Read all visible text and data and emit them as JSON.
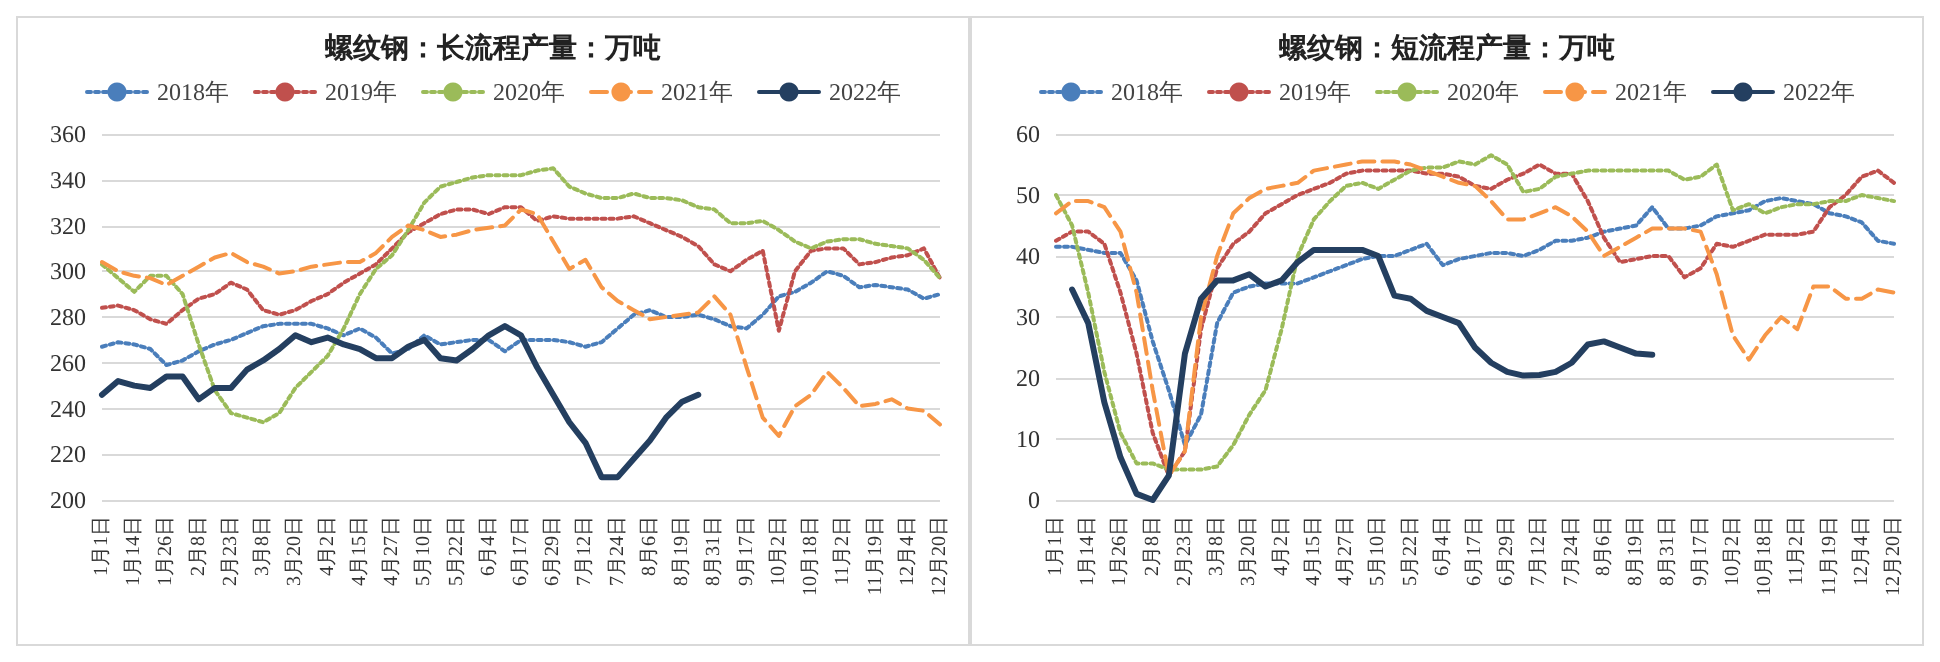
{
  "chart_data": [
    {
      "type": "line",
      "title": "螺纹钢：长流程产量：万吨",
      "categories": [
        "1月1日",
        null,
        "1月14日",
        null,
        "1月26日",
        null,
        "2月8日",
        null,
        "2月23日",
        null,
        "3月8日",
        null,
        "3月20日",
        null,
        "4月2日",
        null,
        "4月15日",
        null,
        "4月27日",
        null,
        "5月10日",
        null,
        "5月22日",
        null,
        "6月4日",
        null,
        "6月17日",
        null,
        "6月29日",
        null,
        "7月12日",
        null,
        "7月24日",
        null,
        "8月6日",
        null,
        "8月19日",
        null,
        "8月31日",
        null,
        "9月17日",
        null,
        "10月2日",
        null,
        "10月18日",
        null,
        "11月2日",
        null,
        "11月19日",
        null,
        "12月4日",
        null,
        "12月20日"
      ],
      "ylim": [
        200,
        360
      ],
      "yticks": [
        200,
        220,
        240,
        260,
        280,
        300,
        320,
        340,
        360
      ],
      "grid": "y",
      "legend": "top",
      "marker": "none",
      "series": [
        {
          "name": "2018年",
          "color": "#4a7ebb",
          "line_style": "dotted",
          "values": [
            267,
            269,
            268,
            266,
            259,
            261,
            265,
            268,
            270,
            273,
            276,
            277,
            277,
            277,
            275,
            272,
            275,
            271,
            264,
            266,
            272,
            268,
            269,
            270,
            270,
            265,
            270,
            270,
            270,
            269,
            267,
            269,
            275,
            281,
            283,
            280,
            280,
            281,
            279,
            276,
            275,
            281,
            289,
            291,
            295,
            300,
            298,
            293,
            294,
            293,
            292,
            288,
            290
          ]
        },
        {
          "name": "2019年",
          "color": "#c0504d",
          "line_style": "dotted",
          "values": [
            284,
            285,
            283,
            279,
            277,
            283,
            288,
            290,
            295,
            292,
            283,
            281,
            283,
            287,
            290,
            295,
            299,
            303,
            310,
            317,
            321,
            325,
            327,
            327,
            325,
            328,
            328,
            322,
            324,
            323,
            323,
            323,
            323,
            324,
            321,
            318,
            315,
            311,
            303,
            300,
            305,
            309,
            274,
            300,
            309,
            310,
            310,
            303,
            304,
            306,
            307,
            310,
            297
          ]
        },
        {
          "name": "2020年",
          "color": "#9bbb59",
          "line_style": "dotted",
          "values": [
            303,
            297,
            291,
            298,
            298,
            290,
            268,
            248,
            238,
            236,
            234,
            238,
            249,
            256,
            263,
            275,
            290,
            301,
            307,
            318,
            330,
            337,
            339,
            341,
            342,
            342,
            342,
            344,
            345,
            337,
            334,
            332,
            332,
            334,
            332,
            332,
            331,
            328,
            327,
            321,
            321,
            322,
            318,
            313,
            310,
            313,
            314,
            314,
            312,
            311,
            310,
            305,
            297
          ]
        },
        {
          "name": "2021年",
          "color": "#f79646",
          "line_style": "dashed",
          "values": [
            304,
            300,
            298,
            297,
            294,
            298,
            302,
            306,
            308,
            304,
            302,
            299,
            300,
            302,
            303,
            304,
            304,
            308,
            315,
            320,
            318,
            315,
            316,
            318,
            319,
            320,
            327,
            325,
            313,
            301,
            305,
            293,
            287,
            283,
            279,
            280,
            281,
            282,
            289,
            281,
            258,
            236,
            228,
            241,
            246,
            256,
            249,
            241,
            242,
            244,
            240,
            239,
            233
          ]
        },
        {
          "name": "2022年",
          "color": "#243f60",
          "line_style": "solid",
          "values": [
            246,
            252,
            250,
            249,
            254,
            254,
            244,
            249,
            249,
            257,
            261,
            266,
            272,
            269,
            271,
            268,
            266,
            262,
            262,
            267,
            270,
            262,
            261,
            266,
            272,
            276,
            272,
            258,
            246,
            234,
            225,
            210,
            210,
            218,
            226,
            236,
            243,
            246,
            null,
            null,
            null,
            null,
            null,
            null,
            null,
            null,
            null,
            null,
            null,
            null,
            null,
            null,
            null
          ]
        }
      ]
    },
    {
      "type": "line",
      "title": "螺纹钢：短流程产量：万吨",
      "categories": [
        "1月1日",
        null,
        "1月14日",
        null,
        "1月26日",
        null,
        "2月8日",
        null,
        "2月23日",
        null,
        "3月8日",
        null,
        "3月20日",
        null,
        "4月2日",
        null,
        "4月15日",
        null,
        "4月27日",
        null,
        "5月10日",
        null,
        "5月22日",
        null,
        "6月4日",
        null,
        "6月17日",
        null,
        "6月29日",
        null,
        "7月12日",
        null,
        "7月24日",
        null,
        "8月6日",
        null,
        "8月19日",
        null,
        "8月31日",
        null,
        "9月17日",
        null,
        "10月2日",
        null,
        "10月18日",
        null,
        "11月2日",
        null,
        "11月19日",
        null,
        "12月4日",
        null,
        "12月20日"
      ],
      "ylim": [
        0,
        60
      ],
      "yticks": [
        0,
        10,
        20,
        30,
        40,
        50,
        60
      ],
      "grid": "y",
      "legend": "top",
      "marker": "none",
      "series": [
        {
          "name": "2018年",
          "color": "#4a7ebb",
          "line_style": "dotted",
          "values": [
            41.5,
            41.5,
            41,
            40.5,
            40.5,
            36,
            26,
            18,
            9,
            14,
            29,
            34,
            35,
            35.5,
            35.5,
            35.5,
            36.5,
            37.5,
            38.5,
            39.5,
            40,
            40,
            41,
            42,
            38.5,
            39.5,
            40,
            40.5,
            40.5,
            40,
            41,
            42.5,
            42.5,
            43,
            44,
            44.5,
            45,
            48,
            44.5,
            44.5,
            45,
            46.5,
            47,
            47.5,
            49,
            49.5,
            49,
            48.5,
            47,
            46.5,
            45.5,
            42.5,
            42
          ]
        },
        {
          "name": "2019年",
          "color": "#c0504d",
          "line_style": "dotted",
          "values": [
            42.5,
            44,
            44,
            42,
            34,
            24,
            11,
            4,
            8,
            28,
            38,
            42,
            44,
            47,
            48.5,
            50,
            51,
            52,
            53.5,
            54,
            54,
            54,
            54,
            53.5,
            53.5,
            53,
            51.5,
            51,
            52.5,
            53.5,
            55,
            53.5,
            53.5,
            49,
            43,
            39,
            39.5,
            40,
            40,
            36.5,
            38,
            42,
            41.5,
            42.5,
            43.5,
            43.5,
            43.5,
            44,
            48,
            50,
            53,
            54,
            52
          ]
        },
        {
          "name": "2020年",
          "color": "#9bbb59",
          "line_style": "dotted",
          "values": [
            50,
            45,
            34,
            21,
            11,
            6,
            6,
            5,
            5,
            5,
            5.5,
            9,
            14,
            18,
            28,
            40,
            46,
            49,
            51.5,
            52,
            51,
            52.5,
            54,
            54.5,
            54.5,
            55.5,
            55,
            56.5,
            55,
            50.5,
            51,
            53,
            53.5,
            54,
            54,
            54,
            54,
            54,
            54,
            52.5,
            53,
            55,
            47.5,
            48.5,
            47,
            48,
            48.5,
            48.5,
            49,
            49,
            50,
            49.5,
            49
          ]
        },
        {
          "name": "2021年",
          "color": "#f79646",
          "line_style": "dashed",
          "values": [
            47,
            49,
            49,
            48,
            44,
            34,
            18,
            4,
            8,
            30,
            40,
            47,
            49.5,
            51,
            51.5,
            52,
            54,
            54.5,
            55,
            55.5,
            55.5,
            55.5,
            55,
            54,
            53,
            52,
            51.5,
            49,
            46,
            46,
            47,
            48,
            46.5,
            44,
            40,
            41.5,
            43,
            44.5,
            44.5,
            44.5,
            44,
            37,
            27,
            23,
            27,
            30,
            28,
            35,
            35,
            33,
            33,
            34.5,
            34
          ]
        },
        {
          "name": "2022年",
          "color": "#243f60",
          "line_style": "solid",
          "values": [
            null,
            34.5,
            29,
            16,
            7,
            1,
            0,
            4,
            24,
            33,
            36,
            36,
            37,
            35,
            36,
            39,
            41,
            41,
            41,
            41,
            40,
            33.5,
            33,
            31,
            30,
            29,
            25,
            22.5,
            21,
            20.4,
            20.5,
            21,
            22.5,
            25.5,
            26,
            25,
            24,
            23.8,
            null,
            null,
            null,
            null,
            null,
            null,
            null,
            null,
            null,
            null,
            null,
            null,
            null,
            null,
            null
          ]
        }
      ]
    }
  ]
}
